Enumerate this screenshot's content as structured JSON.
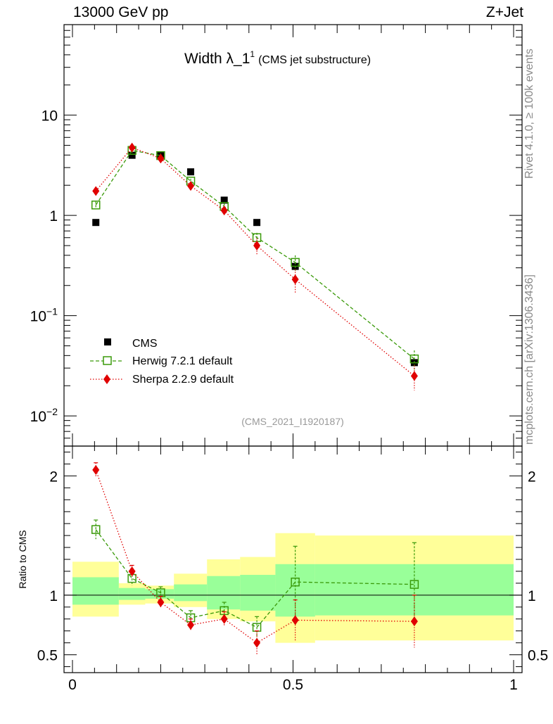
{
  "header": {
    "energy": "13000 GeV pp",
    "process": "Z+Jet",
    "side_label_rivet": "Rivet 4.1.0, ≥ 100k events",
    "side_label_site": "mcplots.cern.ch [arXiv:1306.3436]"
  },
  "chart_data": [
    {
      "type": "scatter",
      "yscale": "log",
      "title_main": "Width λ_1",
      "title_sup": "1",
      "title_note": "(CMS jet substructure)",
      "analysis_tag": "(CMS_2021_I1920187)",
      "xlim": [
        0,
        1
      ],
      "ylim": [
        0.005,
        80
      ],
      "y_ticks": [
        {
          "value": 10,
          "label": "10"
        },
        {
          "value": 1,
          "label": "1"
        },
        {
          "value": 0.1,
          "label": "10",
          "exp": "−1"
        },
        {
          "value": 0.01,
          "label": "10",
          "exp": "−2"
        }
      ],
      "legend": {
        "position": "bottom-left",
        "entries": [
          "CMS",
          "Herwig 7.2.1 default",
          "Sherpa 2.2.9 default"
        ]
      },
      "series": [
        {
          "name": "CMS",
          "color": "#000000",
          "marker": "square-filled",
          "x": [
            0.053,
            0.135,
            0.2,
            0.268,
            0.344,
            0.418,
            0.505,
            0.775
          ],
          "y": [
            0.85,
            3.98,
            3.95,
            2.72,
            1.42,
            0.85,
            0.31,
            0.034
          ]
        },
        {
          "name": "Herwig 7.2.1 default",
          "color": "#3a9a0a",
          "marker": "square-open",
          "line": "dashed",
          "x": [
            0.053,
            0.135,
            0.2,
            0.268,
            0.344,
            0.418,
            0.505,
            0.775
          ],
          "y": [
            1.27,
            4.45,
            3.95,
            2.2,
            1.23,
            0.6,
            0.34,
            0.037
          ],
          "err": [
            0.1,
            0.25,
            0.2,
            0.12,
            0.09,
            0.07,
            0.06,
            0.008
          ]
        },
        {
          "name": "Sherpa 2.2.9 default",
          "color": "#e00000",
          "marker": "diamond-filled",
          "line": "dotted",
          "x": [
            0.053,
            0.135,
            0.2,
            0.268,
            0.344,
            0.418,
            0.505,
            0.775
          ],
          "y": [
            1.75,
            4.75,
            3.7,
            1.97,
            1.12,
            0.5,
            0.23,
            0.025
          ],
          "err": [
            0.1,
            0.25,
            0.2,
            0.15,
            0.12,
            0.09,
            0.06,
            0.007
          ]
        }
      ]
    },
    {
      "type": "scatter",
      "ylabel": "Ratio to CMS",
      "xlim": [
        0,
        1
      ],
      "ylim": [
        0.35,
        2.25
      ],
      "x_ticks": [
        {
          "value": 0,
          "label": "0"
        },
        {
          "value": 0.5,
          "label": "0.5"
        },
        {
          "value": 1,
          "label": "1"
        }
      ],
      "y_ticks": [
        {
          "value": 2,
          "label": "2"
        },
        {
          "value": 1,
          "label": "1"
        },
        {
          "value": 0.5,
          "label": "0.5"
        }
      ],
      "bands": {
        "outer_color": "#ffff99",
        "inner_color": "#99ff99",
        "bins": [
          {
            "x0": 0.0,
            "x1": 0.105,
            "outer": [
              0.82,
              1.28
            ],
            "inner": [
              0.92,
              1.15
            ]
          },
          {
            "x0": 0.105,
            "x1": 0.165,
            "outer": [
              0.92,
              1.1
            ],
            "inner": [
              0.96,
              1.06
            ]
          },
          {
            "x0": 0.165,
            "x1": 0.23,
            "outer": [
              0.93,
              1.08
            ],
            "inner": [
              0.97,
              1.05
            ]
          },
          {
            "x0": 0.23,
            "x1": 0.305,
            "outer": [
              0.9,
              1.18
            ],
            "inner": [
              0.95,
              1.09
            ]
          },
          {
            "x0": 0.305,
            "x1": 0.38,
            "outer": [
              0.8,
              1.3
            ],
            "inner": [
              0.88,
              1.16
            ]
          },
          {
            "x0": 0.38,
            "x1": 0.46,
            "outer": [
              0.78,
              1.32
            ],
            "inner": [
              0.87,
              1.17
            ]
          },
          {
            "x0": 0.46,
            "x1": 0.55,
            "outer": [
              0.6,
              1.52
            ],
            "inner": [
              0.82,
              1.26
            ]
          },
          {
            "x0": 0.55,
            "x1": 1.0,
            "outer": [
              0.62,
              1.5
            ],
            "inner": [
              0.83,
              1.26
            ]
          }
        ]
      },
      "series": [
        {
          "name": "Herwig 7.2.1 default",
          "color": "#3a9a0a",
          "x": [
            0.053,
            0.135,
            0.2,
            0.268,
            0.344,
            0.418,
            0.505,
            0.775
          ],
          "y": [
            1.55,
            1.14,
            1.02,
            0.81,
            0.87,
            0.73,
            1.11,
            1.09
          ],
          "err": [
            0.08,
            0.06,
            0.05,
            0.06,
            0.07,
            0.09,
            0.3,
            0.35
          ]
        },
        {
          "name": "Sherpa 2.2.9 default",
          "color": "#e00000",
          "x": [
            0.053,
            0.135,
            0.2,
            0.268,
            0.344,
            0.418,
            0.505,
            0.775
          ],
          "y": [
            2.05,
            1.2,
            0.94,
            0.75,
            0.8,
            0.6,
            0.79,
            0.78
          ],
          "err": [
            0.06,
            0.05,
            0.05,
            0.05,
            0.06,
            0.1,
            0.17,
            0.22
          ]
        }
      ]
    }
  ]
}
